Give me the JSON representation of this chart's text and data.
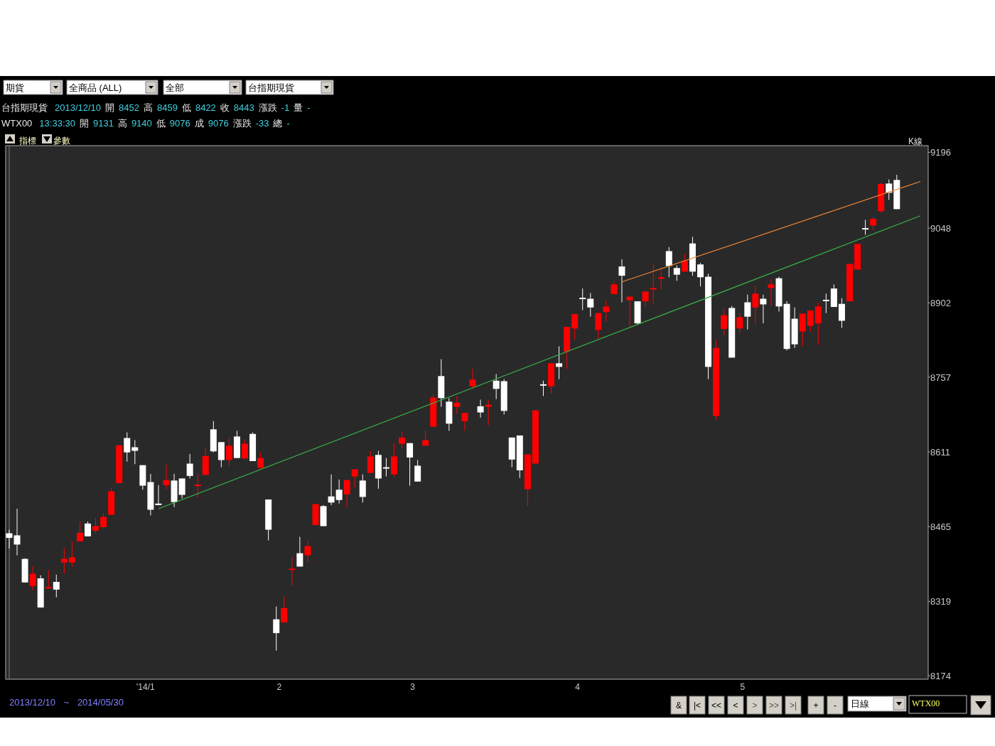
{
  "chart_data": {
    "type": "candlestick",
    "categories": [
      null,
      null,
      null,
      null,
      null,
      null,
      null,
      null,
      null,
      null,
      null,
      null,
      null,
      null,
      null,
      null,
      null,
      "'14/1",
      null,
      null,
      null,
      null,
      null,
      null,
      null,
      null,
      null,
      null,
      null,
      null,
      null,
      null,
      null,
      null,
      "2",
      null,
      null,
      null,
      null,
      null,
      null,
      null,
      null,
      null,
      null,
      null,
      null,
      null,
      null,
      null,
      null,
      "3",
      null,
      null,
      null,
      null,
      null,
      null,
      null,
      null,
      null,
      null,
      null,
      null,
      null,
      null,
      null,
      null,
      null,
      null,
      null,
      null,
      "4",
      null,
      null,
      null,
      null,
      null,
      null,
      null,
      null,
      null,
      null,
      null,
      null,
      null,
      null,
      null,
      null,
      null,
      null,
      null,
      null,
      "5",
      null,
      null,
      null,
      null,
      null,
      null,
      null,
      null,
      null,
      null,
      null,
      null,
      null,
      null,
      null,
      null,
      null,
      null,
      null,
      null,
      null,
      null,
      null
    ],
    "ohlc": [
      [
        8452,
        8459,
        8422,
        8443
      ],
      [
        8448,
        8500,
        8409,
        8430
      ],
      [
        8402,
        8403,
        8356,
        8356
      ],
      [
        8349,
        8388,
        8341,
        8373
      ],
      [
        8364,
        8370,
        8307,
        8307
      ],
      [
        8345,
        8380,
        8344,
        8347
      ],
      [
        8357,
        8371,
        8327,
        8342
      ],
      [
        8395,
        8423,
        8373,
        8402
      ],
      [
        8395,
        8436,
        8387,
        8405
      ],
      [
        8436,
        8475,
        8436,
        8453
      ],
      [
        8471,
        8475,
        8446,
        8446
      ],
      [
        8457,
        8482,
        8453,
        8466
      ],
      [
        8464,
        8491,
        8461,
        8484
      ],
      [
        8488,
        8541,
        8488,
        8534
      ],
      [
        8550,
        8624,
        8550,
        8624
      ],
      [
        8638,
        8649,
        8592,
        8610
      ],
      [
        8620,
        8634,
        8587,
        8613
      ],
      [
        8585,
        8585,
        8537,
        8545
      ],
      [
        8552,
        8568,
        8487,
        8498
      ],
      [
        8510,
        8546,
        8507,
        8507
      ],
      [
        8546,
        8586,
        8538,
        8556
      ],
      [
        8555,
        8568,
        8503,
        8513
      ],
      [
        8559,
        8559,
        8520,
        8527
      ],
      [
        8588,
        8607,
        8559,
        8564
      ],
      [
        8545,
        8568,
        8521,
        8547
      ],
      [
        8566,
        8620,
        8566,
        8603
      ],
      [
        8655,
        8671,
        8610,
        8612
      ],
      [
        8630,
        8630,
        8581,
        8595
      ],
      [
        8595,
        8638,
        8584,
        8623
      ],
      [
        8641,
        8652,
        8599,
        8599
      ],
      [
        8598,
        8635,
        8598,
        8627
      ],
      [
        8646,
        8649,
        8593,
        8593
      ],
      [
        8580,
        8610,
        8577,
        8599
      ],
      [
        8518,
        8518,
        8438,
        8459
      ],
      [
        8284,
        8309,
        8223,
        8257
      ],
      [
        8278,
        8328,
        8278,
        8306
      ],
      [
        8381,
        8406,
        8350,
        8383
      ],
      [
        8413,
        8445,
        8387,
        8387
      ],
      [
        8409,
        8438,
        8396,
        8427
      ],
      [
        8468,
        8509,
        8468,
        8509
      ],
      [
        8505,
        8507,
        8466,
        8466
      ],
      [
        8524,
        8567,
        8507,
        8512
      ],
      [
        8537,
        8557,
        8510,
        8517
      ],
      [
        8528,
        8556,
        8503,
        8556
      ],
      [
        8563,
        8577,
        8541,
        8577
      ],
      [
        8555,
        8567,
        8512,
        8523
      ],
      [
        8570,
        8613,
        8570,
        8602
      ],
      [
        8605,
        8613,
        8539,
        8559
      ],
      [
        8581,
        8599,
        8563,
        8579
      ],
      [
        8567,
        8628,
        8562,
        8602
      ],
      [
        8627,
        8650,
        8618,
        8639
      ],
      [
        8628,
        8628,
        8545,
        8600
      ],
      [
        8584,
        8595,
        8553,
        8553
      ],
      [
        8623,
        8653,
        8623,
        8634
      ],
      [
        8660,
        8723,
        8660,
        8717
      ],
      [
        8759,
        8792,
        8699,
        8716
      ],
      [
        8709,
        8716,
        8652,
        8666
      ],
      [
        8699,
        8720,
        8685,
        8707
      ],
      [
        8671,
        8687,
        8652,
        8687
      ],
      [
        8739,
        8773,
        8734,
        8752
      ],
      [
        8700,
        8713,
        8678,
        8688
      ],
      [
        8699,
        8713,
        8663,
        8703
      ],
      [
        8750,
        8763,
        8714,
        8734
      ],
      [
        8749,
        8753,
        8684,
        8691
      ],
      [
        8639,
        8639,
        8581,
        8596
      ],
      [
        8643,
        8643,
        8560,
        8575
      ],
      [
        8538,
        8606,
        8505,
        8606
      ],
      [
        8588,
        8692,
        8588,
        8692
      ],
      [
        8743,
        8750,
        8720,
        8741
      ],
      [
        8739,
        8784,
        8725,
        8784
      ],
      [
        8784,
        8817,
        8753,
        8777
      ],
      [
        8807,
        8855,
        8773,
        8855
      ],
      [
        8852,
        8880,
        8830,
        8880
      ],
      [
        8912,
        8930,
        8888,
        8911
      ],
      [
        8910,
        8921,
        8875,
        8893
      ],
      [
        8849,
        8882,
        8832,
        8882
      ],
      [
        8884,
        8906,
        8866,
        8895
      ],
      [
        8919,
        8944,
        8919,
        8938
      ],
      [
        8973,
        8987,
        8903,
        8955
      ],
      [
        8907,
        8916,
        8855,
        8914
      ],
      [
        8905,
        8905,
        8859,
        8862
      ],
      [
        8905,
        8924,
        8895,
        8924
      ],
      [
        8928,
        8977,
        8899,
        8931
      ],
      [
        8949,
        8970,
        8928,
        8952
      ],
      [
        9003,
        9011,
        8952,
        8974
      ],
      [
        8970,
        8975,
        8945,
        8957
      ],
      [
        8963,
        8998,
        8963,
        8984
      ],
      [
        9018,
        9031,
        8955,
        8963
      ],
      [
        8977,
        8980,
        8934,
        8952
      ],
      [
        8953,
        8959,
        8753,
        8777
      ],
      [
        8681,
        8831,
        8673,
        8814
      ],
      [
        8851,
        8891,
        8838,
        8878
      ],
      [
        8892,
        8896,
        8795,
        8795
      ],
      [
        8852,
        8882,
        8843,
        8874
      ],
      [
        8903,
        8918,
        8850,
        8875
      ],
      [
        8893,
        8935,
        8859,
        8920
      ],
      [
        8910,
        8918,
        8862,
        8899
      ],
      [
        8931,
        8949,
        8896,
        8938
      ],
      [
        8950,
        8953,
        8885,
        8895
      ],
      [
        8900,
        8905,
        8809,
        8812
      ],
      [
        8871,
        8893,
        8814,
        8821
      ],
      [
        8846,
        8881,
        8817,
        8881
      ],
      [
        8857,
        8887,
        8845,
        8887
      ],
      [
        8862,
        8903,
        8820,
        8895
      ],
      [
        8908,
        8920,
        8882,
        8907
      ],
      [
        8930,
        8938,
        8894,
        8894
      ],
      [
        8900,
        8911,
        8853,
        8867
      ],
      [
        8905,
        8978,
        8905,
        8978
      ],
      [
        8967,
        9017,
        8967,
        9017
      ],
      [
        9048,
        9064,
        9035,
        9047
      ],
      [
        9053,
        9070,
        9044,
        9066
      ],
      [
        9081,
        9137,
        9078,
        9134
      ],
      [
        9135,
        9143,
        9103,
        9117
      ],
      [
        9142,
        9152,
        9085,
        9085
      ],
      null,
      null,
      null
    ],
    "colors": [
      "#ffffff",
      "#ffffff",
      "#ffffff",
      "#ff0000",
      "#ffffff",
      "#ff0000",
      "#ffffff",
      "#ff0000",
      "#ff0000",
      "#ff0000",
      "#ffffff",
      "#ff0000",
      "#ff0000",
      "#ff0000",
      "#ff0000",
      "#ffffff",
      "#ffffff",
      "#ffffff",
      "#ffffff",
      "#ffffff",
      "#ff0000",
      "#ffffff",
      "#ffffff",
      "#ffffff",
      "#ff0000",
      "#ff0000",
      "#ffffff",
      "#ffffff",
      "#ff0000",
      "#ffffff",
      "#ff0000",
      "#ffffff",
      "#ff0000",
      "#ffffff",
      "#ffffff",
      "#ff0000",
      "#ff0000",
      "#ffffff",
      "#ff0000",
      "#ff0000",
      "#ffffff",
      "#ffffff",
      "#ffffff",
      "#ff0000",
      "#ff0000",
      "#ffffff",
      "#ff0000",
      "#ffffff",
      "#ffffff",
      "#ff0000",
      "#ff0000",
      "#ffffff",
      "#ffffff",
      "#ff0000",
      "#ff0000",
      "#ffffff",
      "#ffffff",
      "#ff0000",
      "#ff0000",
      "#ff0000",
      "#ffffff",
      "#ff0000",
      "#ffffff",
      "#ffffff",
      "#ffffff",
      "#ffffff",
      "#ff0000",
      "#ff0000",
      "#ffffff",
      "#ff0000",
      "#ffffff",
      "#ff0000",
      "#ff0000",
      "#ffffff",
      "#ffffff",
      "#ff0000",
      "#ff0000",
      "#ff0000",
      "#ffffff",
      "#ff0000",
      "#ffffff",
      "#ff0000",
      "#ff0000",
      "#ff0000",
      "#ffffff",
      "#ffffff",
      "#ff0000",
      "#ffffff",
      "#ffffff",
      "#ffffff",
      "#ff0000",
      "#ff0000",
      "#ffffff",
      "#ff0000",
      "#ffffff",
      "#ff0000",
      "#ffffff",
      "#ff0000",
      "#ffffff",
      "#ffffff",
      "#ffffff",
      "#ff0000",
      "#ff0000",
      "#ff0000",
      "#ffffff",
      "#ffffff",
      "#ffffff",
      "#ff0000",
      "#ff0000",
      "#ffffff",
      "#ff0000",
      "#ff0000",
      "#ffffff",
      "#ffffff",
      null,
      null,
      null
    ],
    "series": [
      {
        "type": "line",
        "color": "#f0883c",
        "values": [
          null,
          null,
          null,
          null,
          null,
          null,
          null,
          null,
          null,
          null,
          null,
          null,
          null,
          null,
          null,
          null,
          null,
          null,
          null,
          null,
          null,
          null,
          null,
          null,
          null,
          null,
          null,
          null,
          null,
          null,
          null,
          null,
          null,
          null,
          null,
          null,
          null,
          null,
          null,
          null,
          null,
          null,
          null,
          null,
          null,
          null,
          null,
          null,
          null,
          null,
          null,
          null,
          null,
          null,
          null,
          null,
          null,
          null,
          null,
          null,
          null,
          null,
          null,
          null,
          null,
          null,
          null,
          null,
          null,
          null,
          null,
          null,
          null,
          null,
          null,
          null,
          null,
          null,
          8943,
          null,
          null,
          null,
          null,
          null,
          null,
          null,
          null,
          null,
          null,
          null,
          null,
          null,
          null,
          null,
          null,
          null,
          null,
          null,
          null,
          null,
          null,
          null,
          null,
          null,
          null,
          null,
          null,
          null,
          null,
          null,
          null,
          null,
          null,
          null,
          null,
          null,
          9139
        ]
      },
      {
        "type": "line",
        "color": "#38b048",
        "values": [
          null,
          null,
          null,
          null,
          null,
          null,
          null,
          null,
          null,
          null,
          null,
          null,
          null,
          null,
          null,
          null,
          null,
          null,
          null,
          8500,
          null,
          null,
          null,
          null,
          null,
          null,
          null,
          null,
          null,
          null,
          null,
          null,
          null,
          null,
          null,
          null,
          null,
          null,
          null,
          null,
          null,
          null,
          null,
          null,
          null,
          null,
          null,
          null,
          null,
          null,
          null,
          null,
          null,
          null,
          null,
          null,
          null,
          null,
          null,
          null,
          null,
          null,
          null,
          null,
          null,
          null,
          null,
          null,
          null,
          null,
          null,
          null,
          null,
          null,
          null,
          null,
          null,
          null,
          null,
          null,
          null,
          null,
          null,
          null,
          null,
          null,
          null,
          null,
          null,
          null,
          null,
          null,
          null,
          null,
          null,
          null,
          null,
          null,
          null,
          null,
          null,
          null,
          null,
          null,
          null,
          null,
          null,
          null,
          null,
          null,
          null,
          null,
          null,
          null,
          null,
          null,
          9072
        ]
      }
    ],
    "ylim": [
      8167,
      9209
    ],
    "yticks": [
      9196,
      9048,
      8902,
      8757,
      8611,
      8465,
      8319,
      8174
    ],
    "annotations": [
      "期貨",
      "全商品 (ALL)",
      "全部",
      "台指期現貨",
      "台指期現貨 2013/12/10 開 8452 高 8459 低 8422 收 8443 漲跌 -1 量 -",
      "WTX00 13:33:30 開 9131 高 9140 低 9076 成 9076 漲跌 -33 總 -",
      "指標",
      "參數",
      "K線",
      "2013/12/10 ~ 2014/05/30",
      "&",
      "|<",
      "<<",
      "<",
      ">",
      ">>",
      ">|",
      "+",
      "-",
      "日線",
      "WTX00"
    ]
  }
}
